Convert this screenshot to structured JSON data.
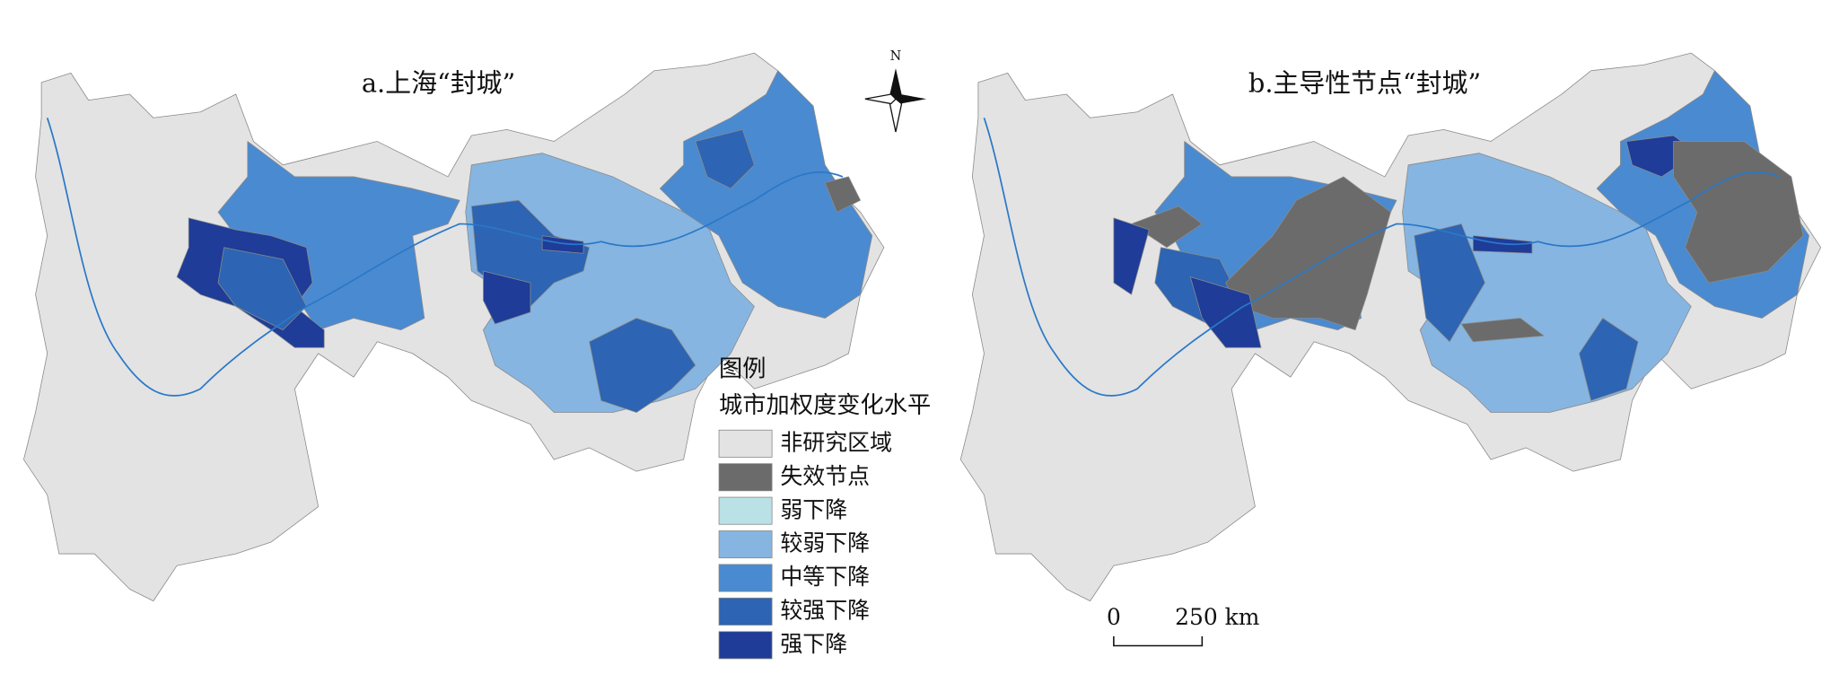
{
  "panels": [
    {
      "title": "a.上海“封城”"
    },
    {
      "title": "b.主导性节点“封城”"
    }
  ],
  "north": "N",
  "legend": {
    "title": "图例",
    "subtitle": "城市加权度变化水平",
    "items": [
      {
        "label": "非研究区域",
        "color": "#e3e3e3"
      },
      {
        "label": "失效节点",
        "color": "#6b6b6b"
      },
      {
        "label": "弱下降",
        "color": "#b9e1e6"
      },
      {
        "label": "较弱下降",
        "color": "#86b5e1"
      },
      {
        "label": "中等下降",
        "color": "#4a8ad0"
      },
      {
        "label": "较强下降",
        "color": "#2d64b3"
      },
      {
        "label": "强下降",
        "color": "#1e3c98"
      }
    ]
  },
  "scale": {
    "start": "0",
    "end": "250 km"
  }
}
